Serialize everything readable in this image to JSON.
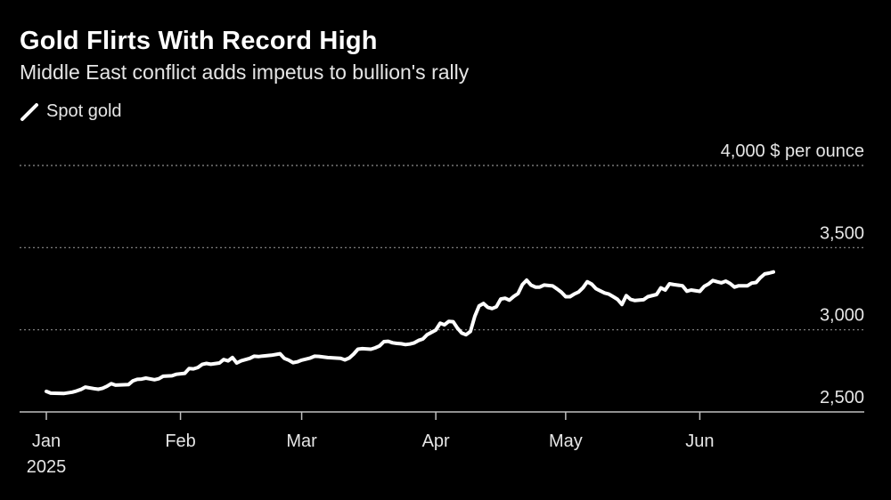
{
  "header": {
    "title": "Gold Flirts With Record High",
    "subtitle": "Middle East conflict adds impetus to bullion's rally"
  },
  "legend": {
    "label": "Spot gold",
    "color": "#ffffff"
  },
  "chart_data": {
    "type": "line",
    "title": "Gold Flirts With Record High",
    "subtitle": "Middle East conflict adds impetus to bullion's rally",
    "ylabel": "$ per ounce",
    "ylim": [
      2500,
      4000
    ],
    "yticks": [
      {
        "value": 2500,
        "label": "2,500"
      },
      {
        "value": 3000,
        "label": "3,000"
      },
      {
        "value": 3500,
        "label": "3,500"
      },
      {
        "value": 4000,
        "label": "4,000 $ per ounce"
      }
    ],
    "xlim": [
      "2025-01-01",
      "2025-07-17"
    ],
    "xticks": [
      {
        "date": "2025-01-01",
        "label": "Jan",
        "sublabel": "2025"
      },
      {
        "date": "2025-02-01",
        "label": "Feb"
      },
      {
        "date": "2025-03-01",
        "label": "Mar"
      },
      {
        "date": "2025-04-01",
        "label": "Apr"
      },
      {
        "date": "2025-05-01",
        "label": "May"
      },
      {
        "date": "2025-06-01",
        "label": "Jun"
      }
    ],
    "grid": true,
    "legend_position": "top-left",
    "series": [
      {
        "name": "Spot gold",
        "color": "#ffffff",
        "points": [
          [
            "2025-01-01",
            2625
          ],
          [
            "2025-01-02",
            2614
          ],
          [
            "2025-01-05",
            2612
          ],
          [
            "2025-01-07",
            2620
          ],
          [
            "2025-01-08",
            2628
          ],
          [
            "2025-01-09",
            2637
          ],
          [
            "2025-01-10",
            2651
          ],
          [
            "2025-01-12",
            2642
          ],
          [
            "2025-01-13",
            2638
          ],
          [
            "2025-01-14",
            2644
          ],
          [
            "2025-01-15",
            2656
          ],
          [
            "2025-01-16",
            2672
          ],
          [
            "2025-01-17",
            2663
          ],
          [
            "2025-01-20",
            2667
          ],
          [
            "2025-01-21",
            2689
          ],
          [
            "2025-01-22",
            2698
          ],
          [
            "2025-01-23",
            2700
          ],
          [
            "2025-01-24",
            2706
          ],
          [
            "2025-01-26",
            2696
          ],
          [
            "2025-01-27",
            2702
          ],
          [
            "2025-01-28",
            2717
          ],
          [
            "2025-01-30",
            2720
          ],
          [
            "2025-01-31",
            2729
          ],
          [
            "2025-02-02",
            2735
          ],
          [
            "2025-02-03",
            2764
          ],
          [
            "2025-02-04",
            2762
          ],
          [
            "2025-02-05",
            2770
          ],
          [
            "2025-02-06",
            2789
          ],
          [
            "2025-02-07",
            2795
          ],
          [
            "2025-02-08",
            2790
          ],
          [
            "2025-02-10",
            2798
          ],
          [
            "2025-02-11",
            2819
          ],
          [
            "2025-02-12",
            2811
          ],
          [
            "2025-02-13",
            2831
          ],
          [
            "2025-02-14",
            2798
          ],
          [
            "2025-02-15",
            2811
          ],
          [
            "2025-02-17",
            2826
          ],
          [
            "2025-02-18",
            2839
          ],
          [
            "2025-02-19",
            2837
          ],
          [
            "2025-02-20",
            2840
          ],
          [
            "2025-02-22",
            2845
          ],
          [
            "2025-02-24",
            2854
          ],
          [
            "2025-02-25",
            2826
          ],
          [
            "2025-02-26",
            2815
          ],
          [
            "2025-02-27",
            2800
          ],
          [
            "2025-02-28",
            2805
          ],
          [
            "2025-03-01",
            2815
          ],
          [
            "2025-03-03",
            2828
          ],
          [
            "2025-03-04",
            2839
          ],
          [
            "2025-03-05",
            2838
          ],
          [
            "2025-03-07",
            2831
          ],
          [
            "2025-03-10",
            2826
          ],
          [
            "2025-03-11",
            2817
          ],
          [
            "2025-03-12",
            2828
          ],
          [
            "2025-03-13",
            2852
          ],
          [
            "2025-03-14",
            2882
          ],
          [
            "2025-03-15",
            2885
          ],
          [
            "2025-03-17",
            2882
          ],
          [
            "2025-03-18",
            2890
          ],
          [
            "2025-03-19",
            2902
          ],
          [
            "2025-03-20",
            2928
          ],
          [
            "2025-03-21",
            2930
          ],
          [
            "2025-03-22",
            2921
          ],
          [
            "2025-03-23",
            2917
          ],
          [
            "2025-03-24",
            2915
          ],
          [
            "2025-03-25",
            2910
          ],
          [
            "2025-03-26",
            2913
          ],
          [
            "2025-03-27",
            2920
          ],
          [
            "2025-03-28",
            2935
          ],
          [
            "2025-03-29",
            2944
          ],
          [
            "2025-03-30",
            2970
          ],
          [
            "2025-04-01",
            2998
          ],
          [
            "2025-04-02",
            3040
          ],
          [
            "2025-04-03",
            3030
          ],
          [
            "2025-04-04",
            3051
          ],
          [
            "2025-04-05",
            3049
          ],
          [
            "2025-04-06",
            3010
          ],
          [
            "2025-04-07",
            2980
          ],
          [
            "2025-04-08",
            2970
          ],
          [
            "2025-04-09",
            2990
          ],
          [
            "2025-04-10",
            3082
          ],
          [
            "2025-04-11",
            3145
          ],
          [
            "2025-04-12",
            3160
          ],
          [
            "2025-04-13",
            3137
          ],
          [
            "2025-04-14",
            3129
          ],
          [
            "2025-04-15",
            3140
          ],
          [
            "2025-04-16",
            3187
          ],
          [
            "2025-04-17",
            3192
          ],
          [
            "2025-04-18",
            3180
          ],
          [
            "2025-04-19",
            3203
          ],
          [
            "2025-04-20",
            3220
          ],
          [
            "2025-04-21",
            3275
          ],
          [
            "2025-04-22",
            3302
          ],
          [
            "2025-04-23",
            3272
          ],
          [
            "2025-04-24",
            3260
          ],
          [
            "2025-04-25",
            3260
          ],
          [
            "2025-04-26",
            3272
          ],
          [
            "2025-04-28",
            3267
          ],
          [
            "2025-04-29",
            3249
          ],
          [
            "2025-04-30",
            3229
          ],
          [
            "2025-05-01",
            3201
          ],
          [
            "2025-05-02",
            3201
          ],
          [
            "2025-05-03",
            3218
          ],
          [
            "2025-05-04",
            3230
          ],
          [
            "2025-05-05",
            3256
          ],
          [
            "2025-05-06",
            3292
          ],
          [
            "2025-05-07",
            3278
          ],
          [
            "2025-05-08",
            3250
          ],
          [
            "2025-05-09",
            3237
          ],
          [
            "2025-05-10",
            3224
          ],
          [
            "2025-05-11",
            3217
          ],
          [
            "2025-05-12",
            3201
          ],
          [
            "2025-05-13",
            3185
          ],
          [
            "2025-05-14",
            3154
          ],
          [
            "2025-05-15",
            3208
          ],
          [
            "2025-05-16",
            3185
          ],
          [
            "2025-05-17",
            3178
          ],
          [
            "2025-05-19",
            3183
          ],
          [
            "2025-05-20",
            3201
          ],
          [
            "2025-05-22",
            3215
          ],
          [
            "2025-05-23",
            3255
          ],
          [
            "2025-05-24",
            3242
          ],
          [
            "2025-05-25",
            3280
          ],
          [
            "2025-05-26",
            3275
          ],
          [
            "2025-05-28",
            3268
          ],
          [
            "2025-05-29",
            3235
          ],
          [
            "2025-05-30",
            3242
          ],
          [
            "2025-06-01",
            3234
          ],
          [
            "2025-06-02",
            3264
          ],
          [
            "2025-06-03",
            3278
          ],
          [
            "2025-06-04",
            3300
          ],
          [
            "2025-06-05",
            3292
          ],
          [
            "2025-06-06",
            3286
          ],
          [
            "2025-06-07",
            3296
          ],
          [
            "2025-06-08",
            3282
          ],
          [
            "2025-06-09",
            3260
          ],
          [
            "2025-06-10",
            3268
          ],
          [
            "2025-06-11",
            3268
          ],
          [
            "2025-06-12",
            3268
          ],
          [
            "2025-06-13",
            3284
          ],
          [
            "2025-06-14",
            3288
          ],
          [
            "2025-06-15",
            3317
          ],
          [
            "2025-06-16",
            3340
          ],
          [
            "2025-06-17",
            3345
          ],
          [
            "2025-06-18",
            3352
          ]
        ]
      }
    ]
  }
}
